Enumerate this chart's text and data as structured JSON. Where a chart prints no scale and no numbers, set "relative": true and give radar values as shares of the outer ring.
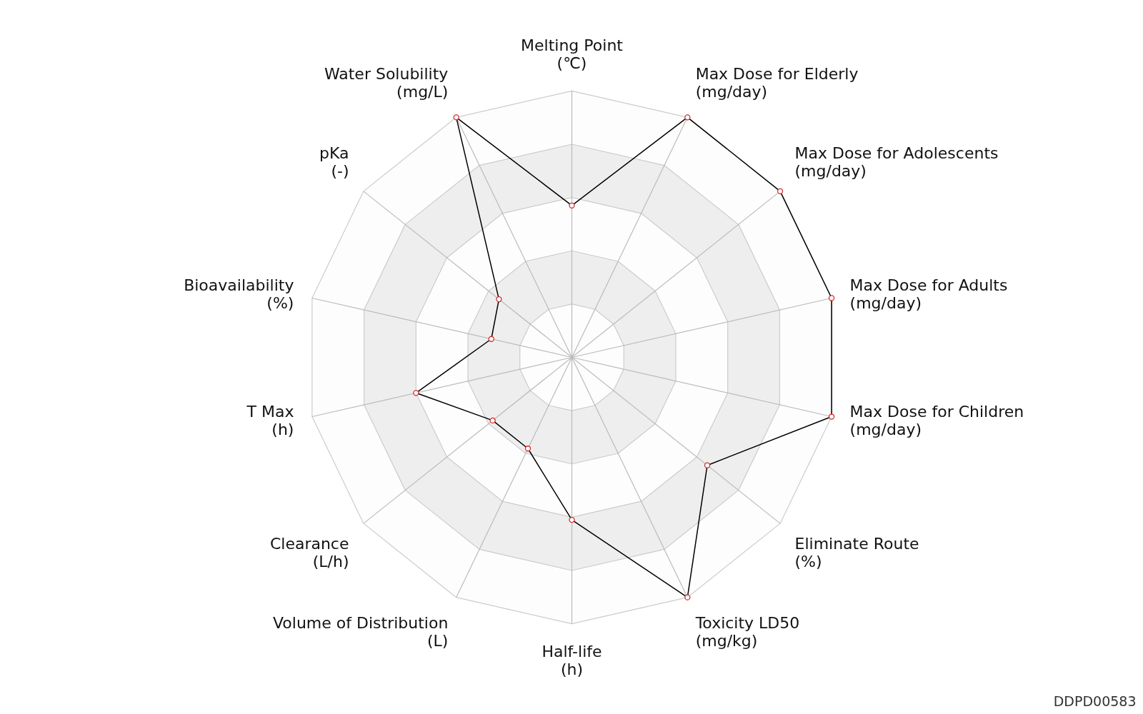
{
  "chart_data": {
    "type": "radar",
    "relative": true,
    "grid": true,
    "marker": "circle",
    "line_style": "solid",
    "categories": [
      "Melting Point\n(℃)",
      "Max Dose for Elderly\n(mg/day)",
      "Max Dose for Adolescents\n(mg/day)",
      "Max Dose for Adults\n(mg/day)",
      "Max Dose for Children\n(mg/day)",
      "Eliminate Route\n(%)",
      "Toxicity LD50\n(mg/kg)",
      "Half-life\n(h)",
      "Volume of Distribution\n(L)",
      "Clearance\n(L/h)",
      "T Max\n(h)",
      "Bioavailability\n(%)",
      "pKa\n(-)",
      "Water Solubility\n(mg/L)"
    ],
    "series": [
      {
        "color": "#000000",
        "values": [
          0.57,
          1,
          1,
          1,
          1,
          0.65,
          1,
          0.61,
          0.38,
          0.38,
          0.6,
          0.31,
          0.35,
          1
        ]
      }
    ],
    "annotations": [
      "DDPD00583"
    ]
  }
}
